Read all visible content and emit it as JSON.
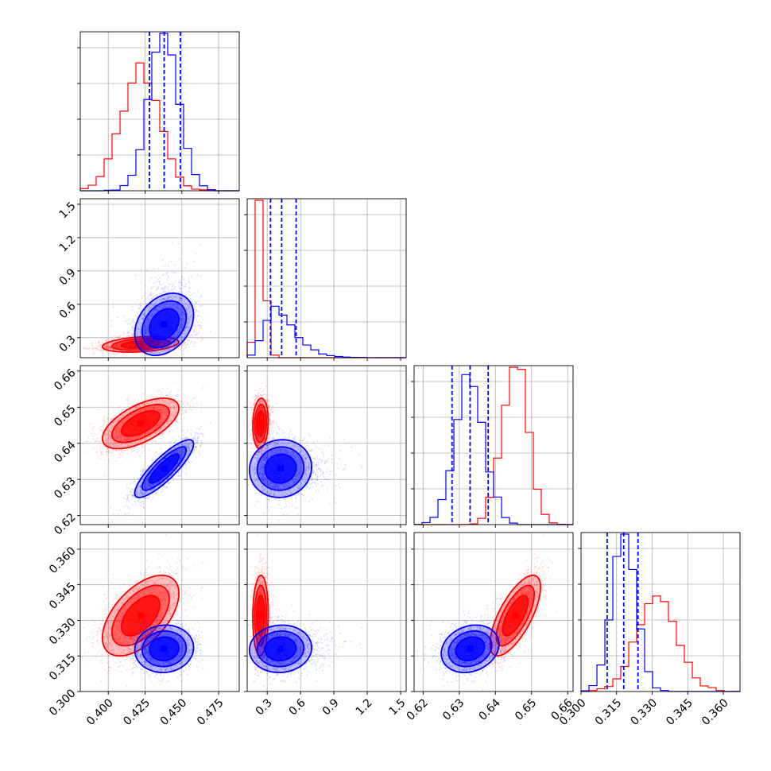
{
  "chart_data": {
    "type": "corner",
    "title": "",
    "parameters": 4,
    "series": [
      {
        "color": "#ff0000",
        "mean": [
          0.422,
          0.24,
          0.6455,
          0.332
        ],
        "sd": [
          0.013,
          0.035,
          0.0035,
          0.0085
        ],
        "corr": [
          [
            1,
            0.3,
            0.6,
            0.55
          ],
          [
            0.3,
            1,
            0.1,
            0.05
          ],
          [
            0.6,
            0.1,
            1,
            0.7
          ],
          [
            0.55,
            0.05,
            0.7,
            1
          ]
        ]
      },
      {
        "color": "#0000ff",
        "mean": [
          0.438,
          0.42,
          0.633,
          0.318
        ],
        "sd": [
          0.01,
          0.14,
          0.004,
          0.005
        ],
        "corr": [
          [
            1,
            0.3,
            0.85,
            0.05
          ],
          [
            0.3,
            1,
            0.05,
            0.05
          ],
          [
            0.85,
            0.05,
            1,
            0.2
          ],
          [
            0.05,
            0.05,
            0.2,
            1
          ]
        ]
      }
    ],
    "quantile_lines": {
      "color": "#0000ff",
      "style": "dashed",
      "values": [
        [
          0.428,
          0.438,
          0.449
        ],
        [
          0.33,
          0.43,
          0.56
        ],
        [
          0.628,
          0.633,
          0.638
        ],
        [
          0.311,
          0.318,
          0.324
        ]
      ]
    },
    "ranges": [
      [
        0.381,
        0.489
      ],
      [
        0.12,
        1.55
      ],
      [
        0.6175,
        0.6615
      ],
      [
        0.3,
        0.367
      ]
    ],
    "ticks": [
      [
        0.4,
        0.425,
        0.45,
        0.475
      ],
      [
        0.3,
        0.6,
        0.9,
        1.2,
        1.5
      ],
      [
        0.62,
        0.63,
        0.64,
        0.65,
        0.66
      ],
      [
        0.3,
        0.315,
        0.33,
        0.345,
        0.36
      ]
    ],
    "tick_labels": [
      [
        "0.400",
        "0.425",
        "0.450",
        "0.475"
      ],
      [
        "0.3",
        "0.6",
        "0.9",
        "1.2",
        "1.5"
      ],
      [
        "0.62",
        "0.63",
        "0.64",
        "0.65",
        "0.66"
      ],
      [
        "0.300",
        "0.315",
        "0.330",
        "0.345",
        "0.360"
      ]
    ],
    "xlabel": "",
    "ylabel": "",
    "grid": true,
    "legend": "none"
  }
}
